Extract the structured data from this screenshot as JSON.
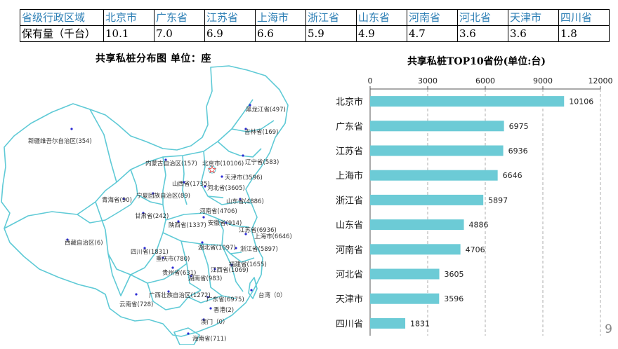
{
  "table": {
    "rows": [
      [
        "省级行政区域",
        "北京市",
        "广东省",
        "江苏省",
        "上海市",
        "浙江省",
        "山东省",
        "河南省",
        "河北省",
        "天津市",
        "四川省"
      ],
      [
        "保有量（千台）",
        "10.1",
        "7.0",
        "6.9",
        "6.6",
        "5.9",
        "4.9",
        "4.7",
        "3.6",
        "3.6",
        "1.8"
      ]
    ]
  },
  "map": {
    "title": "共享私桩分布图   单位：座",
    "labels": [
      "黑龙江省(497)",
      "吉林省(169)",
      "新疆维吾尔自治区(354)",
      "内蒙古自治区(157)",
      "北京市(10106)",
      "辽宁省(583)",
      "天津市(3596)",
      "山西省(1735)",
      "河北省(3605)",
      "青海省(90)",
      "宁夏回族自治区(89)",
      "山东省(4886)",
      "甘肃省(242)",
      "河南省(4706)",
      "陕西省(1337)",
      "安徽省(914)",
      "江苏省(6936)",
      "上海市(6646)",
      "西藏自治区(6)",
      "湖北省(1097)",
      "浙江省(5897)",
      "四川省(1831)",
      "重庆市(780)",
      "福建省(1655)",
      "贵州省(631)",
      "江西省(1069)",
      "湖南省(983)",
      "广西壮族自治区(1272)",
      "广东省(6975)",
      "台湾（0）",
      "云南省(728)",
      "香港(2)",
      "澳门（0）",
      "海南省(711)"
    ]
  },
  "chart_data": {
    "type": "bar",
    "orientation": "horizontal",
    "title": "共享私桩TOP10省份(单位:台)",
    "categories": [
      "北京市",
      "广东省",
      "江苏省",
      "上海市",
      "浙江省",
      "山东省",
      "河南省",
      "河北省",
      "天津市",
      "四川省"
    ],
    "values": [
      10106,
      6975,
      6936,
      6646,
      5897,
      4886,
      4706,
      3605,
      3596,
      1831
    ],
    "xlim": [
      0,
      12000
    ],
    "xticks": [
      "0",
      "3000",
      "6000",
      "9000",
      "12000"
    ],
    "axis_position": "top",
    "grid": "vertical dashed",
    "bar_color": "#6ccbd6"
  },
  "page_number": "9"
}
